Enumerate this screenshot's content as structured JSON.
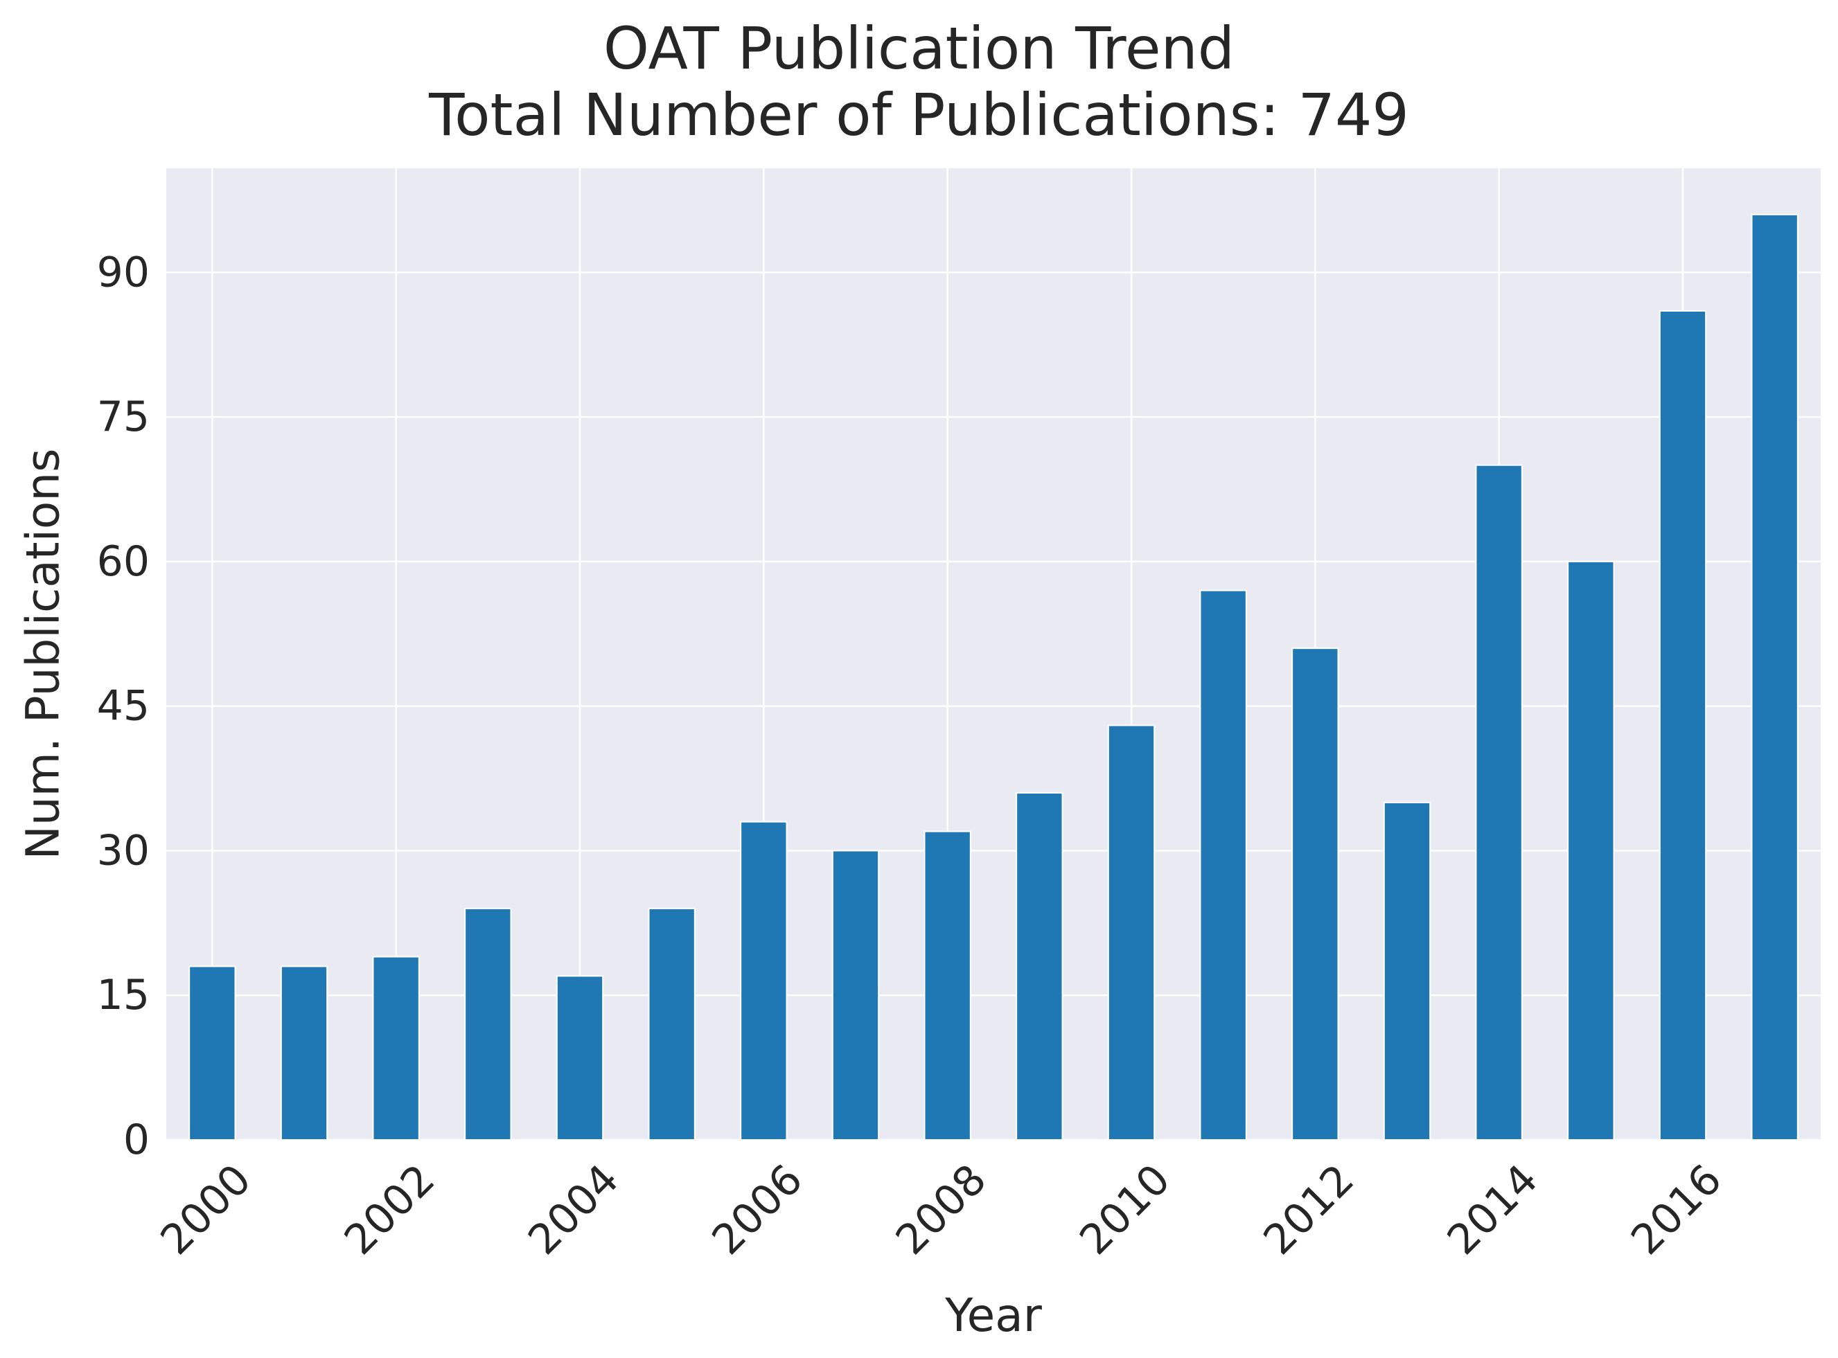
{
  "chart_data": {
    "type": "bar",
    "title": "OAT Publication Trend",
    "subtitle": "Total Number of Publications: 749",
    "xlabel": "Year",
    "ylabel": "Num. Publications",
    "categories": [
      "2000",
      "2001",
      "2002",
      "2003",
      "2004",
      "2005",
      "2006",
      "2007",
      "2008",
      "2009",
      "2010",
      "2011",
      "2012",
      "2013",
      "2014",
      "2015",
      "2016",
      "2017"
    ],
    "values": [
      18,
      18,
      19,
      24,
      17,
      24,
      33,
      30,
      32,
      36,
      43,
      57,
      51,
      35,
      70,
      60,
      86,
      96
    ],
    "x_tick_labels": [
      "2000",
      "2002",
      "2004",
      "2006",
      "2008",
      "2010",
      "2012",
      "2014",
      "2016"
    ],
    "y_ticks": [
      0,
      15,
      30,
      45,
      60,
      75,
      90
    ],
    "ylim": [
      0,
      100.8
    ],
    "grid": true,
    "bar_color": "#1f77b4",
    "background_color": "#eaeaf2",
    "grid_color": "#ffffff"
  }
}
